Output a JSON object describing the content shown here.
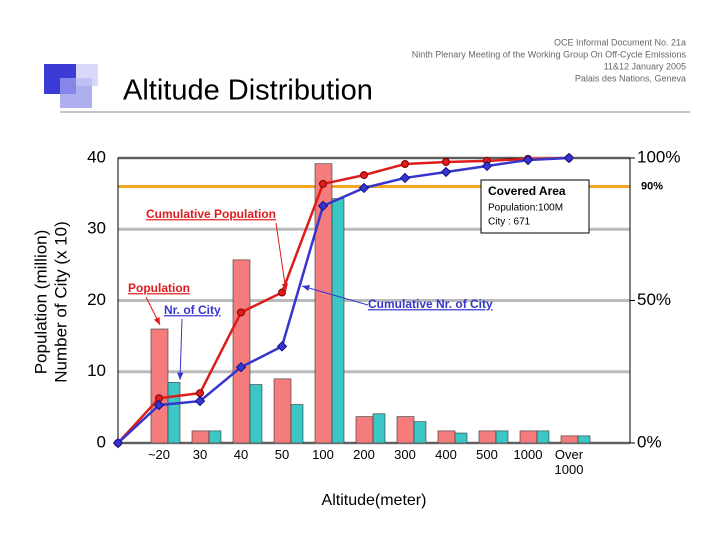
{
  "header": {
    "lines": [
      "OCE Informal Document No. 21a",
      "Ninth Plenary Meeting of the Working Group On Off-Cycle Emissions",
      "11&12 January 2005",
      "Palais des Nations, Geneva"
    ]
  },
  "title": "Altitude Distribution",
  "chart_data": {
    "type": "bar",
    "categories": [
      null,
      "~20",
      "30",
      "40",
      "50",
      "100",
      "200",
      "300",
      "400",
      "500",
      "1000",
      "Over 1000"
    ],
    "series": [
      {
        "name": "Population",
        "type": "bar",
        "color": "#f47c7c",
        "values": [
          null,
          16,
          1.7,
          25.7,
          9,
          39.2,
          3.7,
          3.7,
          1.7,
          1.7,
          1.7,
          1
        ]
      },
      {
        "name": "Nr. of City",
        "type": "bar",
        "color": "#3cc6c6",
        "values": [
          null,
          8.5,
          1.7,
          8.2,
          5.4,
          34.3,
          4.1,
          3,
          1.4,
          1.7,
          1.7,
          1
        ]
      },
      {
        "name": "Cumulative Population",
        "type": "line",
        "axis": "y2",
        "color": "#dd1c1c",
        "values": [
          0,
          15.7,
          17.5,
          45.8,
          52.8,
          90.9,
          94,
          97.9,
          98.6,
          99,
          99.7,
          100
        ]
      },
      {
        "name": "Cumulative Nr. of City",
        "type": "line",
        "axis": "y2",
        "color": "#3636cc",
        "values": [
          0,
          13.3,
          14.7,
          26.6,
          33.9,
          83.2,
          89.5,
          93,
          95.1,
          97.2,
          99.3,
          100
        ]
      }
    ],
    "ylim": [
      0,
      40
    ],
    "yticks": [
      0,
      10,
      20,
      30,
      40
    ],
    "y2lim": [
      0,
      100
    ],
    "y2ticks": [
      {
        "value": 0,
        "label": "0%"
      },
      {
        "value": 50,
        "label": "50%"
      },
      {
        "value": 100,
        "label": "100%"
      }
    ],
    "y_label": [
      "Population (million)",
      "Number of City (x 10)"
    ],
    "x_label": "Altitude(meter)",
    "grid": true,
    "reference_line": {
      "value": 90,
      "label": "90%",
      "color": "#f5a623"
    },
    "info_box": {
      "title": "Covered Area",
      "lines": [
        "Population:100M",
        "City :  671"
      ]
    }
  }
}
